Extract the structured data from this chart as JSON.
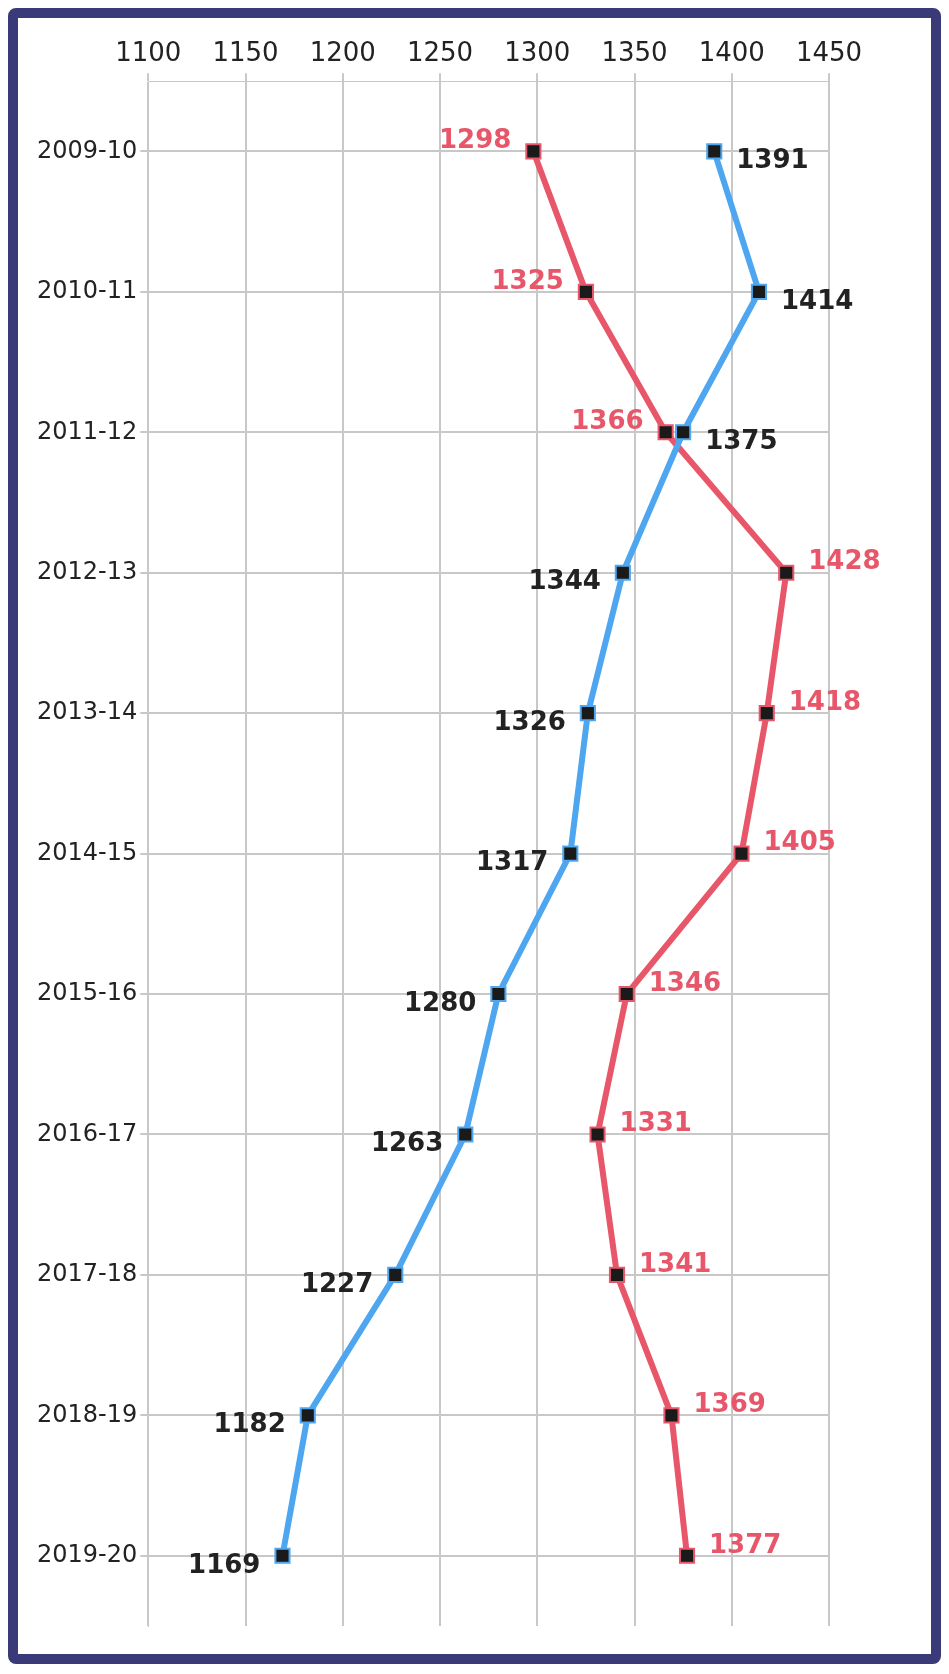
{
  "chart_data": {
    "type": "line",
    "orientation": "horizontal",
    "categories": [
      "2009-10",
      "2010-11",
      "2011-12",
      "2012-13",
      "2013-14",
      "2014-15",
      "2015-16",
      "2016-17",
      "2017-18",
      "2018-19",
      "2019-20"
    ],
    "series": [
      {
        "color": "#4da6ef",
        "values": [
          1391,
          1414,
          1375,
          1344,
          1326,
          1317,
          1280,
          1263,
          1227,
          1182,
          1169
        ]
      },
      {
        "color": "#e8566a",
        "values": [
          1298,
          1325,
          1366,
          1428,
          1418,
          1405,
          1346,
          1331,
          1341,
          1369,
          1377
        ]
      }
    ],
    "xlim": [
      1100,
      1450
    ],
    "xticks": [
      1100,
      1150,
      1200,
      1250,
      1300,
      1350,
      1400,
      1450
    ],
    "grid": true,
    "legend": false,
    "marker": "square",
    "line_style": "solid",
    "data_labels": true
  }
}
